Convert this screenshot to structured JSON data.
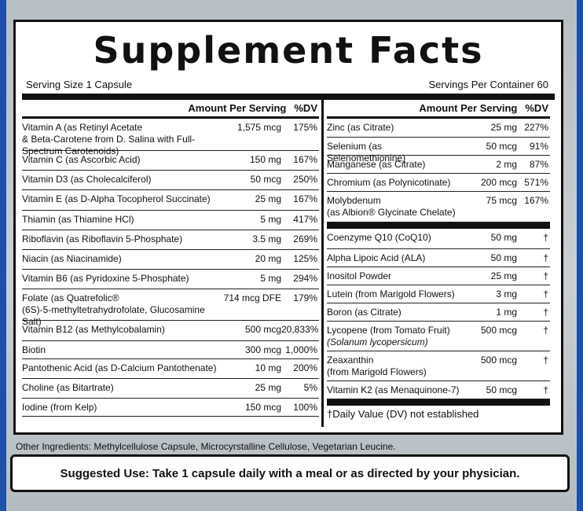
{
  "title": "Supplement Facts",
  "serving_size": "Serving Size 1 Capsule",
  "servings_per_container": "Servings Per Container 60",
  "left_header": {
    "amount": "Amount Per Serving",
    "dv": "%DV"
  },
  "right_header": {
    "amount": "Amount Per Serving",
    "dv": "%DV"
  },
  "left_rows": [
    {
      "name": "Vitamin A (as Retinyl Acetate",
      "name2": "& Beta-Carotene from D. Salina with Full-Spectrum Carotenoids)",
      "amount": "1,575 mcg",
      "dv": "175%"
    },
    {
      "name": "Vitamin C  (as Ascorbic Acid)",
      "amount": "150 mg",
      "dv": "167%"
    },
    {
      "name": "Vitamin D3  (as Cholecalciferol)",
      "amount": "50 mcg",
      "dv": "250%"
    },
    {
      "name": "Vitamin E  (as D-Alpha Tocopherol Succinate)",
      "amount": "25 mg",
      "dv": "167%"
    },
    {
      "name": "Thiamin  (as Thiamine HCl)",
      "amount": "5 mg",
      "dv": "417%"
    },
    {
      "name": "Riboflavin  (as Riboflavin 5-Phosphate)",
      "amount": "3.5 mg",
      "dv": "269%"
    },
    {
      "name": "Niacin  (as Niacinamide)",
      "amount": "20 mg",
      "dv": "125%"
    },
    {
      "name": "Vitamin B6  (as Pyridoxine 5-Phosphate)",
      "amount": "5 mg",
      "dv": "294%"
    },
    {
      "name": "Folate  (as Quatrefolic®",
      "name2": "(6S)-5-methyltetrahydrofolate, Glucosamine Salt)",
      "amount": "714 mcg DFE",
      "dv": "179%"
    },
    {
      "name": "Vitamin B12  (as Methylcobalamin)",
      "amount": "500 mcg",
      "dv": "20,833%"
    },
    {
      "name": "Biotin",
      "amount": "300 mcg",
      "dv": "1,000%"
    },
    {
      "name": "Pantothenic Acid  (as D-Calcium Pantothenate)",
      "amount": "10 mg",
      "dv": "200%"
    },
    {
      "name": "Choline  (as Bitartrate)",
      "amount": "25 mg",
      "dv": "5%"
    },
    {
      "name": "Iodine  (from Kelp)",
      "amount": "150 mcg",
      "dv": "100%"
    }
  ],
  "right_rows_top": [
    {
      "name": "Zinc  (as Citrate)",
      "amount": "25 mg",
      "dv": "227%"
    },
    {
      "name": "Selenium  (as Selenomethionine)",
      "amount": "50 mcg",
      "dv": "91%"
    },
    {
      "name": "Manganese  (as Citrate)",
      "amount": "2 mg",
      "dv": "87%"
    },
    {
      "name": "Chromium  (as Polynicotinate)",
      "amount": "200 mcg",
      "dv": "571%"
    },
    {
      "name": "Molybdenum",
      "name2": "(as Albion® Glycinate Chelate)",
      "amount": "75 mcg",
      "dv": "167%"
    }
  ],
  "right_rows_bottom": [
    {
      "name": "Coenzyme Q10  (CoQ10)",
      "amount": "50 mg",
      "dv": "†"
    },
    {
      "name": "Alpha Lipoic Acid  (ALA)",
      "amount": "50 mg",
      "dv": "†"
    },
    {
      "name": "Inositol Powder",
      "amount": "25 mg",
      "dv": "†"
    },
    {
      "name": "Lutein  (from Marigold Flowers)",
      "amount": "3 mg",
      "dv": "†"
    },
    {
      "name": "Boron  (as Citrate)",
      "amount": "1 mg",
      "dv": "†"
    },
    {
      "name": "Lycopene  (from Tomato Fruit)",
      "name2": "(Solanum lycopersicum)",
      "italic2": true,
      "amount": "500 mcg",
      "dv": "†"
    },
    {
      "name": "Zeaxanthin",
      "name2": "(from Marigold Flowers)",
      "amount": "500 mcg",
      "dv": "†"
    },
    {
      "name": "Vitamin K2  (as Menaquinone-7)",
      "amount": "50 mcg",
      "dv": "†"
    }
  ],
  "footnote": "†Daily Value (DV) not established",
  "other_ingredients": "Other Ingredients: Methylcellulose Capsule, Microcyrstalline Cellulose, Vegetarian Leucine.",
  "suggested_use": "Suggested Use: Take 1 capsule daily with a meal or as directed  by your physician."
}
